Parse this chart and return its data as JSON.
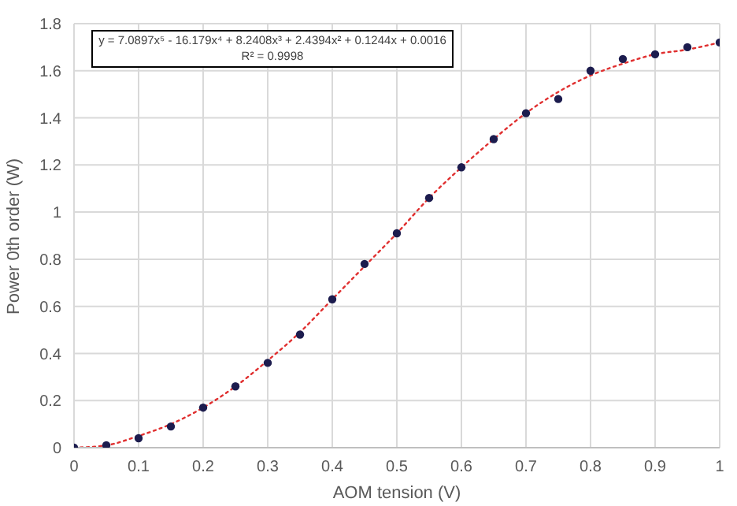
{
  "chart_data": {
    "type": "scatter",
    "xlabel": "AOM tension (V)",
    "ylabel": "Power 0th order (W)",
    "annotations": [
      "y = 7.0897x⁵ - 16.179x⁴ + 8.2408x³ + 2.4394x² + 0.1244x + 0.0016",
      "R² = 0.9998"
    ],
    "series": [
      {
        "color": "#1c1c4e",
        "marker": "circle",
        "x": [
          0,
          0.05,
          0.1,
          0.15,
          0.2,
          0.25,
          0.3,
          0.35,
          0.4,
          0.45,
          0.5,
          0.55,
          0.6,
          0.65,
          0.7,
          0.75,
          0.8,
          0.85,
          0.9,
          0.95,
          1
        ],
        "values": [
          0,
          0.01,
          0.04,
          0.09,
          0.17,
          0.26,
          0.36,
          0.48,
          0.63,
          0.78,
          0.91,
          1.06,
          1.19,
          1.31,
          1.42,
          1.48,
          1.6,
          1.65,
          1.67,
          1.7,
          1.72
        ]
      },
      {
        "type": "line",
        "color": "#e03030",
        "line_style": "dotted",
        "marker": "none",
        "x": [
          0,
          0.05,
          0.1,
          0.15,
          0.2,
          0.25,
          0.3,
          0.35,
          0.4,
          0.45,
          0.5,
          0.55,
          0.6,
          0.65,
          0.7,
          0.75,
          0.8,
          0.85,
          0.9,
          0.95,
          1
        ],
        "values": [
          0,
          0.01,
          0.05,
          0.1,
          0.17,
          0.26,
          0.37,
          0.49,
          0.63,
          0.77,
          0.91,
          1.06,
          1.19,
          1.31,
          1.42,
          1.51,
          1.58,
          1.63,
          1.67,
          1.69,
          1.72
        ]
      }
    ],
    "xlim": [
      0,
      1
    ],
    "xticks": [
      0,
      0.1,
      0.2,
      0.3,
      0.4,
      0.5,
      0.6,
      0.7,
      0.8,
      0.9,
      1
    ],
    "ylim": [
      0,
      1.8
    ],
    "yticks": [
      0,
      0.2,
      0.4,
      0.6,
      0.8,
      1,
      1.2,
      1.4,
      1.6,
      1.8
    ],
    "grid": true
  }
}
